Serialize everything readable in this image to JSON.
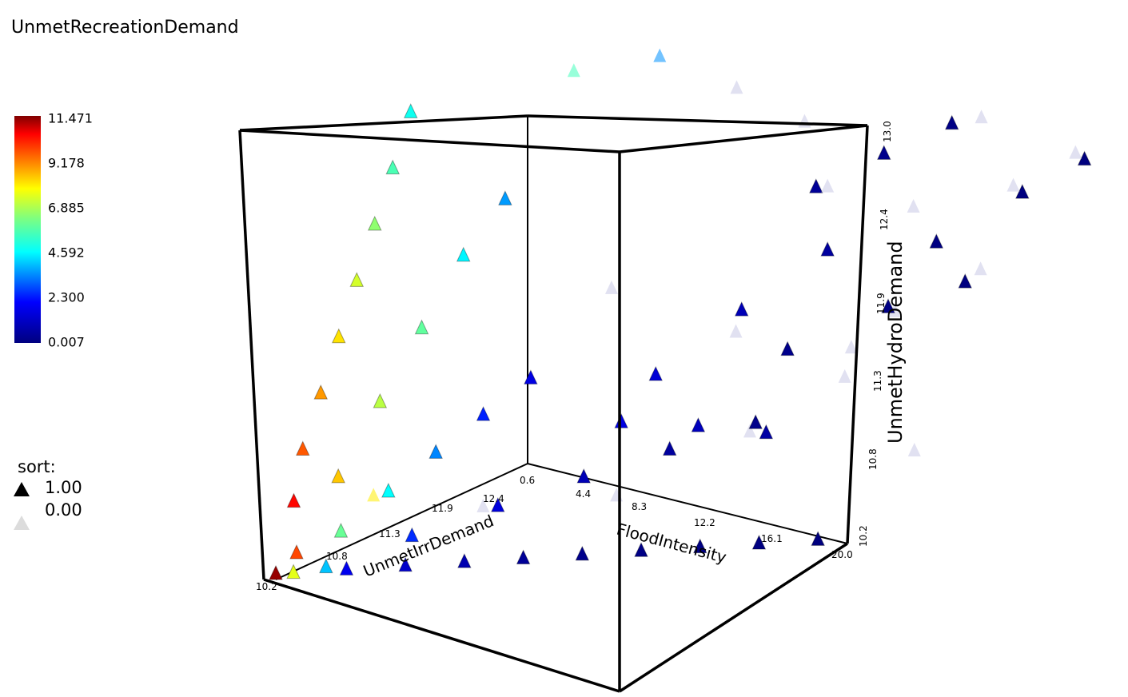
{
  "chart_data": {
    "type": "scatter",
    "title": "UnmetRecreationDemand",
    "axes": {
      "x": {
        "label": "FloodIntensity",
        "ticks": [
          "0.6",
          "4.4",
          "8.3",
          "12.2",
          "16.1",
          "20.0"
        ],
        "range": [
          0.6,
          20.0
        ]
      },
      "y": {
        "label": "UnmetIrrDemand",
        "ticks": [
          "10.2",
          "10.8",
          "11.3",
          "11.9",
          "12.4",
          "13.0"
        ],
        "range": [
          10.2,
          13.0
        ]
      },
      "z": {
        "label": "UnmetHydroDemand",
        "ticks": [
          "10.2",
          "10.8",
          "11.3",
          "11.9",
          "12.4",
          "13.0"
        ],
        "range": [
          10.2,
          13.0
        ]
      }
    },
    "colorbar": {
      "ticks": [
        "11.471",
        "9.178",
        "6.885",
        "4.592",
        "2.300",
        "0.007"
      ],
      "range": [
        0.007,
        11.471
      ],
      "colormap": [
        "#00007f",
        "#0000ff",
        "#00ffff",
        "#7fff7f",
        "#ffff00",
        "#ff7f00",
        "#ff0000",
        "#7f0000"
      ]
    },
    "legend": {
      "title": "sort:",
      "entries": [
        {
          "label": "1.00",
          "color": "#000000",
          "marker": "triangle"
        },
        {
          "label": "0.00",
          "color": "#e0e0e0",
          "marker": "triangle"
        }
      ]
    },
    "points_note_series": [
      {
        "name": "sort=1.00",
        "points": [
          [
            0.6,
            10.2,
            10.2,
            11.3
          ],
          [
            0.6,
            10.4,
            10.6,
            10.5
          ],
          [
            0.6,
            10.5,
            10.9,
            9.6
          ],
          [
            0.6,
            10.7,
            11.2,
            8.9
          ],
          [
            0.6,
            10.9,
            11.5,
            8.1
          ],
          [
            0.6,
            11.1,
            11.8,
            7.3
          ],
          [
            0.6,
            11.3,
            12.1,
            6.5
          ],
          [
            0.6,
            11.5,
            12.4,
            5.6
          ],
          [
            0.6,
            11.7,
            12.7,
            4.8
          ],
          [
            1.0,
            10.3,
            10.3,
            9.8
          ],
          [
            1.5,
            10.6,
            10.7,
            8.4
          ],
          [
            2.0,
            10.9,
            11.1,
            7.0
          ],
          [
            2.5,
            11.2,
            11.5,
            5.9
          ],
          [
            3.0,
            11.5,
            11.9,
            4.5
          ],
          [
            3.5,
            11.8,
            12.2,
            3.6
          ],
          [
            1.2,
            10.2,
            10.2,
            7.5
          ],
          [
            2.2,
            10.4,
            10.4,
            6.0
          ],
          [
            3.2,
            10.6,
            10.6,
            4.6
          ],
          [
            4.2,
            10.8,
            10.8,
            3.4
          ],
          [
            5.2,
            11.0,
            11.0,
            2.4
          ],
          [
            6.2,
            11.2,
            11.2,
            1.6
          ],
          [
            2.0,
            10.3,
            10.2,
            4.0
          ],
          [
            4.0,
            10.6,
            10.3,
            2.5
          ],
          [
            6.0,
            10.9,
            10.4,
            1.5
          ],
          [
            8.0,
            11.2,
            10.5,
            0.9
          ],
          [
            10.0,
            11.5,
            10.6,
            0.5
          ],
          [
            12.0,
            11.8,
            10.7,
            0.2
          ],
          [
            3.0,
            10.2,
            10.2,
            1.8
          ],
          [
            5.0,
            10.2,
            10.2,
            1.2
          ],
          [
            7.0,
            10.2,
            10.2,
            0.8
          ],
          [
            9.0,
            10.2,
            10.2,
            0.4
          ],
          [
            11.0,
            10.2,
            10.2,
            0.2
          ],
          [
            13.0,
            10.2,
            10.2,
            0.1
          ],
          [
            15.0,
            10.2,
            10.2,
            0.05
          ],
          [
            17.0,
            10.2,
            10.2,
            0.03
          ],
          [
            19.0,
            10.2,
            10.2,
            0.01
          ],
          [
            5.0,
            12.6,
            10.5,
            1.6
          ],
          [
            7.0,
            12.8,
            10.4,
            1.0
          ],
          [
            9.0,
            12.9,
            10.3,
            0.6
          ],
          [
            8.0,
            12.0,
            11.0,
            1.4
          ],
          [
            10.0,
            12.3,
            11.4,
            0.9
          ],
          [
            12.0,
            12.6,
            11.8,
            0.5
          ],
          [
            11.0,
            12.8,
            12.2,
            0.4
          ],
          [
            13.0,
            12.9,
            12.5,
            0.2
          ],
          [
            15.0,
            13.0,
            12.8,
            0.1
          ],
          [
            16.0,
            12.5,
            12.0,
            0.05
          ],
          [
            18.0,
            12.8,
            12.4,
            0.02
          ],
          [
            19.5,
            13.0,
            12.7,
            0.01
          ],
          [
            14.0,
            11.5,
            11.4,
            0.2
          ],
          [
            16.5,
            11.8,
            11.7,
            0.08
          ],
          [
            18.5,
            12.0,
            11.9,
            0.03
          ]
        ]
      },
      {
        "name": "sort=0.00",
        "points": [
          [
            4.0,
            12.4,
            12.9,
            5.5
          ],
          [
            6.0,
            12.7,
            13.0,
            3.5
          ],
          [
            8.0,
            12.9,
            12.8,
            2.0
          ],
          [
            10.0,
            13.0,
            12.6,
            1.2
          ],
          [
            12.0,
            12.6,
            12.3,
            0.8
          ],
          [
            14.0,
            12.9,
            12.1,
            0.5
          ],
          [
            16.0,
            13.0,
            12.9,
            0.4
          ],
          [
            18.0,
            12.7,
            12.5,
            0.3
          ],
          [
            19.5,
            12.9,
            12.8,
            0.2
          ],
          [
            6.5,
            12.0,
            11.6,
            2.4
          ],
          [
            9.5,
            12.4,
            11.2,
            1.6
          ],
          [
            12.5,
            12.7,
            11.0,
            1.0
          ],
          [
            15.5,
            12.2,
            11.5,
            0.6
          ],
          [
            17.5,
            12.5,
            11.8,
            0.4
          ],
          [
            3.0,
            10.5,
            10.6,
            8.0
          ],
          [
            5.5,
            10.9,
            10.4,
            3.0
          ],
          [
            8.5,
            11.4,
            10.3,
            1.8
          ],
          [
            11.5,
            11.9,
            10.6,
            1.1
          ],
          [
            13.5,
            12.3,
            10.9,
            0.7
          ],
          [
            18.0,
            11.6,
            10.5,
            0.3
          ]
        ]
      }
    ],
    "grid": false
  }
}
